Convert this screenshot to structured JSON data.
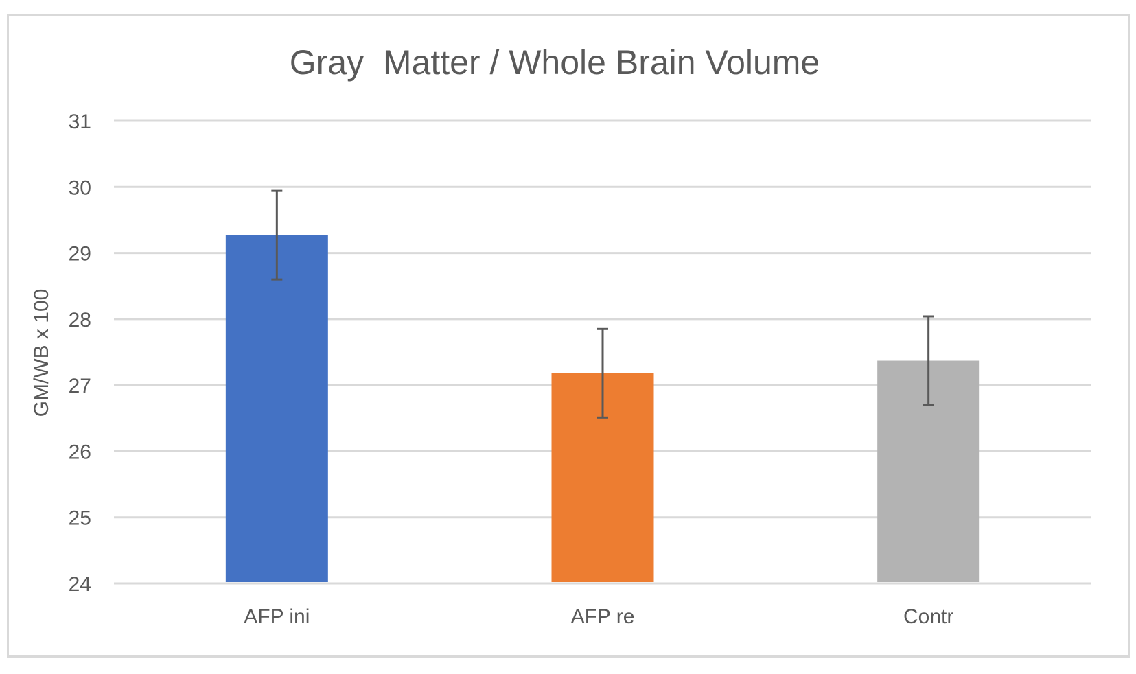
{
  "chart_data": {
    "type": "bar",
    "title": "Gray  Matter / Whole Brain Volume",
    "xlabel": "",
    "ylabel": "GM/WB x 100",
    "categories": [
      "AFP ini",
      "AFP re",
      "Contr"
    ],
    "values": [
      29.27,
      27.18,
      27.37
    ],
    "error": [
      0.67,
      0.67,
      0.67
    ],
    "colors": [
      "#4472c4",
      "#ed7d31",
      "#b3b3b3"
    ],
    "ylim": [
      24,
      31
    ],
    "yticks": [
      "24",
      "25",
      "26",
      "27",
      "28",
      "29",
      "30",
      "31"
    ],
    "grid": true,
    "legend": "none"
  }
}
